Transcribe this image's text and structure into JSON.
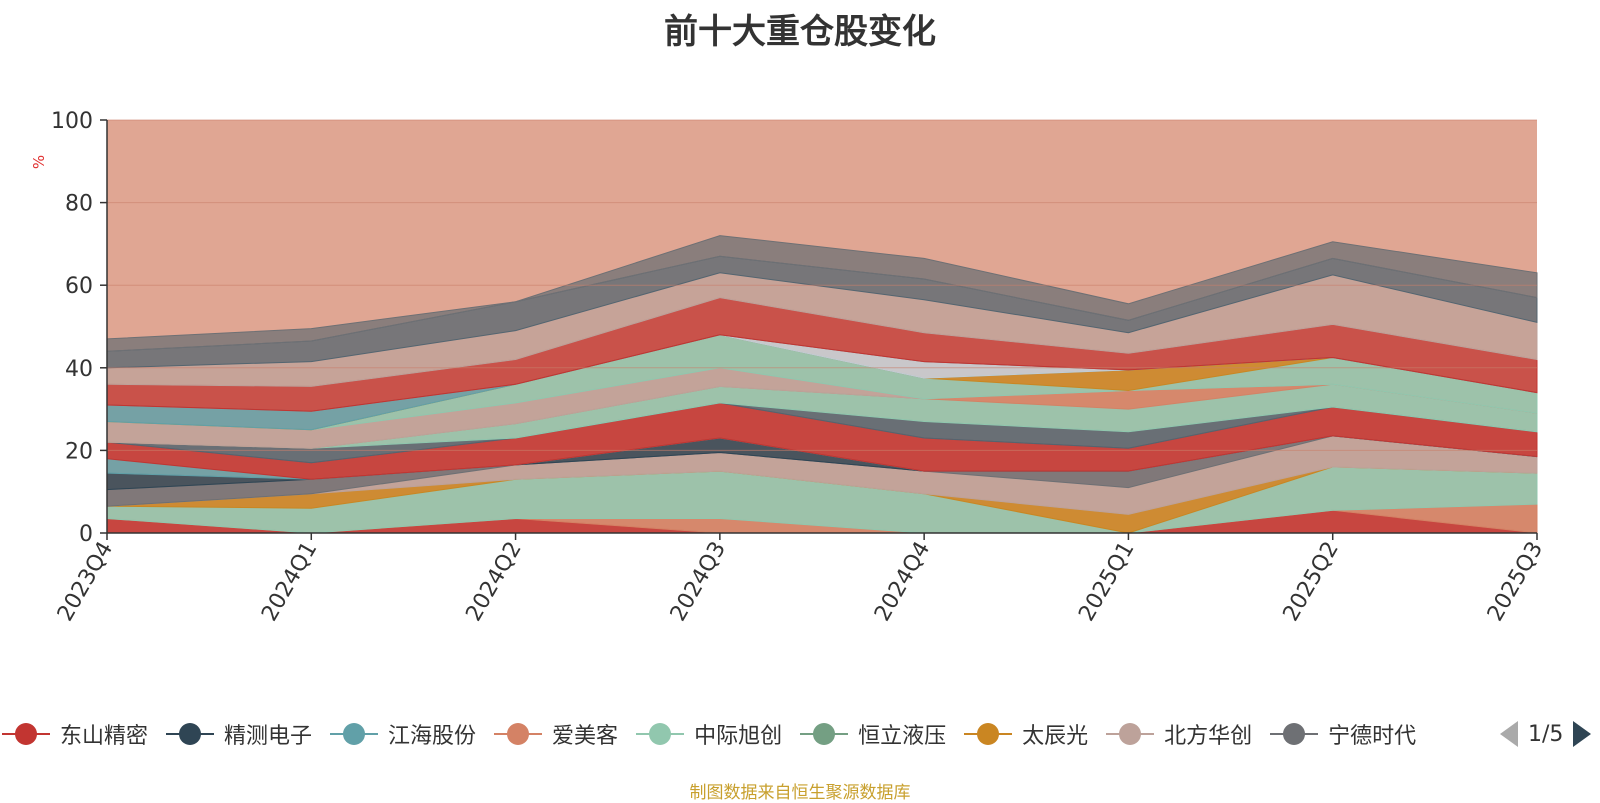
{
  "chart_data": {
    "type": "area",
    "stacked": true,
    "title": "前十大重仓股变化",
    "ylabel": "%",
    "ylim": [
      0,
      100
    ],
    "yticks": [
      "0",
      "20",
      "40",
      "60",
      "80",
      "100"
    ],
    "categories": [
      "2023Q4",
      "2024Q1",
      "2024Q2",
      "2024Q3",
      "2024Q4",
      "2025Q1",
      "2025Q2",
      "2025Q3"
    ],
    "grid": true,
    "legend_position": "bottom",
    "series": [
      {
        "name": "东山精密",
        "color": "#c23531",
        "values": [
          0,
          0,
          3.5,
          0,
          0,
          0,
          5.5,
          0
        ]
      },
      {
        "name": "精测电子",
        "color": "#2f4554",
        "values": [
          3.5,
          0,
          0,
          0,
          0,
          0,
          0,
          0
        ]
      },
      {
        "name": "江海股份",
        "color": "#61a0a8",
        "values": [
          0,
          0,
          0,
          0,
          0,
          0,
          0,
          7
        ]
      },
      {
        "name": "爱美客",
        "color": "#d48265",
        "values": [
          0,
          0,
          0,
          3.5,
          0,
          0,
          0,
          0
        ]
      },
      {
        "name": "中际旭创",
        "color": "#91c7ae",
        "values": [
          3,
          6,
          9.5,
          11.5,
          9.5,
          0,
          10.5,
          7.5
        ]
      },
      {
        "name": "恒立液压",
        "color": "#749f83",
        "values": [
          0,
          0,
          0,
          0,
          0,
          4.5,
          0,
          0
        ]
      },
      {
        "name": "太辰光",
        "color": "#ca8622",
        "values": [
          0,
          3.5,
          0,
          0,
          0,
          0,
          7.5,
          4
        ]
      },
      {
        "name": "北方华创",
        "color": "#bda29a",
        "values": [
          0,
          3.5,
          3.5,
          4.5,
          5.5,
          6.5,
          0,
          0
        ]
      },
      {
        "name": "宁德时代",
        "color": "#6e7074",
        "values": [
          4,
          0,
          0,
          0,
          0,
          4,
          0,
          0
        ]
      }
    ],
    "other_layers": {
      "colors": [
        "#546570",
        "#c4ccd3",
        "#c23531",
        "#61a0a8",
        "#91c7ae",
        "#d48265",
        "#91c7ae",
        "#ca8622",
        "#bda29a",
        "#6e7074",
        "#c23531",
        "#61a0a8",
        "#d48265"
      ]
    }
  },
  "legend": {
    "page": "1/5"
  },
  "source_note": "制图数据来自恒生聚源数据库"
}
